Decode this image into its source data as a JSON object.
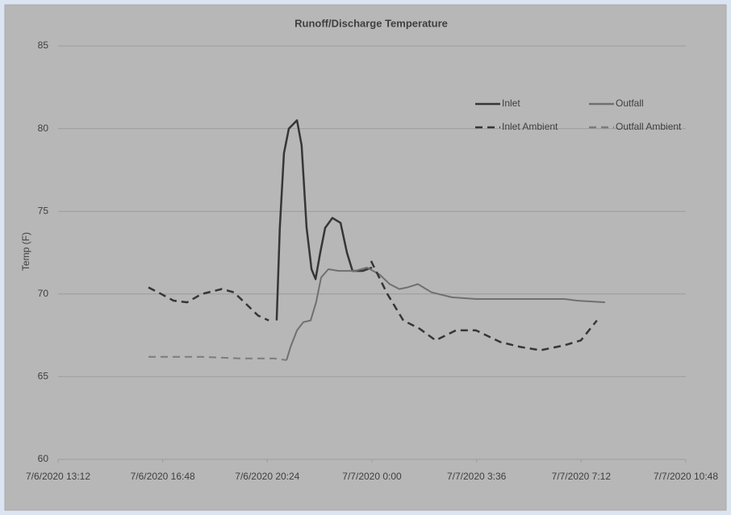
{
  "chart_data": {
    "type": "line",
    "title": "Runoff/Discharge Temperature",
    "y_label": "Temp (F)",
    "xlim": [
      13.2,
      34.8
    ],
    "xticks": [
      {
        "value": 13.2,
        "label": "7/6/2020 13:12"
      },
      {
        "value": 16.8,
        "label": "7/6/2020 16:48"
      },
      {
        "value": 20.4,
        "label": "7/6/2020 20:24"
      },
      {
        "value": 24,
        "label": "7/7/2020 0:00"
      },
      {
        "value": 27.6,
        "label": "7/7/2020 3:36"
      },
      {
        "value": 31.2,
        "label": "7/7/2020 7:12"
      },
      {
        "value": 34.8,
        "label": "7/7/2020 10:48"
      }
    ],
    "ylim": [
      60,
      85
    ],
    "yticks": [
      60,
      65,
      70,
      75,
      80,
      85
    ],
    "grid": true,
    "legend": "top-right",
    "series": [
      {
        "name": "Inlet",
        "color": "#363636",
        "dash": false,
        "x": [
          20.72,
          20.83,
          20.97,
          21.14,
          21.42,
          21.58,
          21.75,
          21.92,
          22.06,
          22.22,
          22.39,
          22.64,
          22.92,
          23.14,
          23.33,
          23.69,
          24.0
        ],
        "values": [
          68.4,
          74,
          78.5,
          80,
          80.5,
          79,
          74,
          71.5,
          70.9,
          72.5,
          74,
          74.6,
          74.3,
          72.5,
          71.4,
          71.4,
          71.6
        ]
      },
      {
        "name": "Outfall",
        "color": "#707070",
        "dash": false,
        "x": [
          21.06,
          21.2,
          21.42,
          21.64,
          21.89,
          22.08,
          22.25,
          22.5,
          22.86,
          23.42,
          23.83,
          24.25,
          24.61,
          24.94,
          25.22,
          25.58,
          26.05,
          26.75,
          27.58,
          28.97,
          30.63,
          31.05,
          32.02
        ],
        "values": [
          66,
          66.8,
          67.8,
          68.3,
          68.4,
          69.5,
          71,
          71.5,
          71.4,
          71.4,
          71.6,
          71.2,
          70.6,
          70.3,
          70.4,
          70.6,
          70.1,
          69.8,
          69.7,
          69.7,
          69.7,
          69.6,
          69.5
        ]
      },
      {
        "name": "Inlet Ambient",
        "color": "#363636",
        "dash": true,
        "x": [
          16.31,
          16.75,
          17.17,
          17.64,
          18.14,
          18.84,
          19.25,
          19.67,
          20.08,
          20.45,
          21.5,
          23.97,
          24.53,
          25.08,
          25.64,
          26.19,
          26.89,
          27.58,
          28.41,
          29.11,
          29.8,
          30.63,
          31.19,
          31.74
        ],
        "values": [
          70.4,
          70,
          69.6,
          69.5,
          70,
          70.3,
          70.1,
          69.4,
          68.7,
          68.4,
          null,
          72,
          70,
          68.4,
          67.9,
          67.2,
          67.8,
          67.8,
          67.1,
          66.8,
          66.6,
          66.9,
          67.2,
          68.4
        ]
      },
      {
        "name": "Outfall Ambient",
        "color": "#7c7c7c",
        "dash": true,
        "x": [
          16.31,
          18.14,
          19.53,
          20.64,
          21.06
        ],
        "values": [
          66.2,
          66.2,
          66.1,
          66.1,
          66
        ]
      }
    ]
  }
}
